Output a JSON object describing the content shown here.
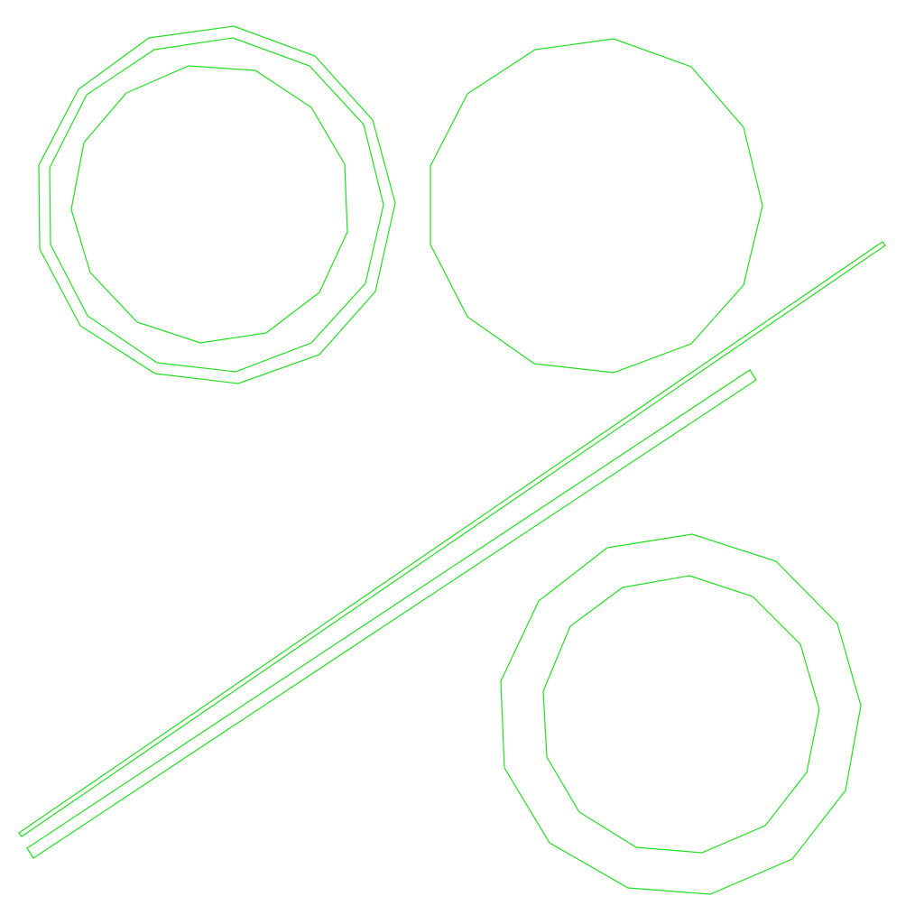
{
  "drawing": {
    "stroke_color": "#22dd22",
    "background_color": "#ffffff",
    "shapes": [
      {
        "id": "ring-top-left-outer",
        "kind": "dodecagon-outline"
      },
      {
        "id": "ring-top-left-middle",
        "kind": "dodecagon-outline"
      },
      {
        "id": "ring-top-left-inner",
        "kind": "dodecagon-outline"
      },
      {
        "id": "circle-top-right",
        "kind": "dodecagon-outline"
      },
      {
        "id": "diagonal-bar-upper",
        "kind": "thin-bar-outline"
      },
      {
        "id": "diagonal-bar-lower",
        "kind": "thin-bar-outline"
      },
      {
        "id": "ring-bottom-right-outer",
        "kind": "dodecagon-outline"
      },
      {
        "id": "ring-bottom-right-inner",
        "kind": "dodecagon-outline"
      }
    ]
  }
}
